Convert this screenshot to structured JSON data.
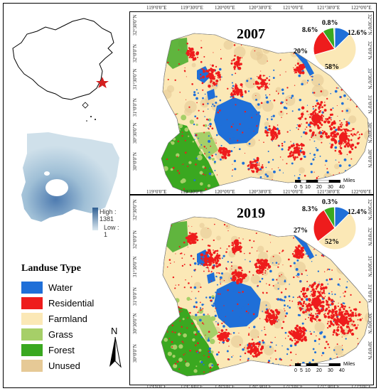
{
  "maps": [
    {
      "year": "2007",
      "pie": [
        {
          "class": "Water",
          "value": 12.6,
          "label": "12.6%"
        },
        {
          "class": "Residential",
          "value": 20,
          "label": "20%"
        },
        {
          "class": "Farmland",
          "value": 58,
          "label": "58%"
        },
        {
          "class": "Grass",
          "value": 0.8,
          "label": "0.8%"
        },
        {
          "class": "Forest",
          "value": 8.6,
          "label": "8.6%"
        }
      ]
    },
    {
      "year": "2019",
      "pie": [
        {
          "class": "Water",
          "value": 12.4,
          "label": "12.4%"
        },
        {
          "class": "Residential",
          "value": 27,
          "label": "27%"
        },
        {
          "class": "Farmland",
          "value": 52,
          "label": "52%"
        },
        {
          "class": "Grass",
          "value": 0.3,
          "label": "0.3%"
        },
        {
          "class": "Forest",
          "value": 8.3,
          "label": "8.3%"
        }
      ]
    }
  ],
  "lon_labels": [
    "119°0'0\"E",
    "119°30'0\"E",
    "120°0'0\"E",
    "120°30'0\"E",
    "121°0'0\"E",
    "121°30'0\"E",
    "122°0'0\"E"
  ],
  "lat_labels": [
    "32°30'0\"N",
    "32°0'0\"N",
    "31°30'0\"N",
    "31°0'0\"N",
    "30°30'0\"N",
    "30°0'0\"N"
  ],
  "scale_bar": {
    "ticks": [
      "0",
      "5",
      "10",
      "20",
      "30",
      "40"
    ],
    "unit": "Miles"
  },
  "dem_legend": {
    "high": "High : 1381",
    "low": "Low : 1"
  },
  "legend": {
    "title": "Landuse Type",
    "items": [
      {
        "label": "Water",
        "color": "#1f6fd8"
      },
      {
        "label": "Residential",
        "color": "#ee1c1c"
      },
      {
        "label": "Farmland",
        "color": "#fbe8b6"
      },
      {
        "label": "Grass",
        "color": "#a6cf68"
      },
      {
        "label": "Forest",
        "color": "#3aa820"
      },
      {
        "label": "Unused",
        "color": "#e6c996"
      }
    ]
  },
  "north_arrow": "N",
  "location_marker_color": "#d42020"
}
